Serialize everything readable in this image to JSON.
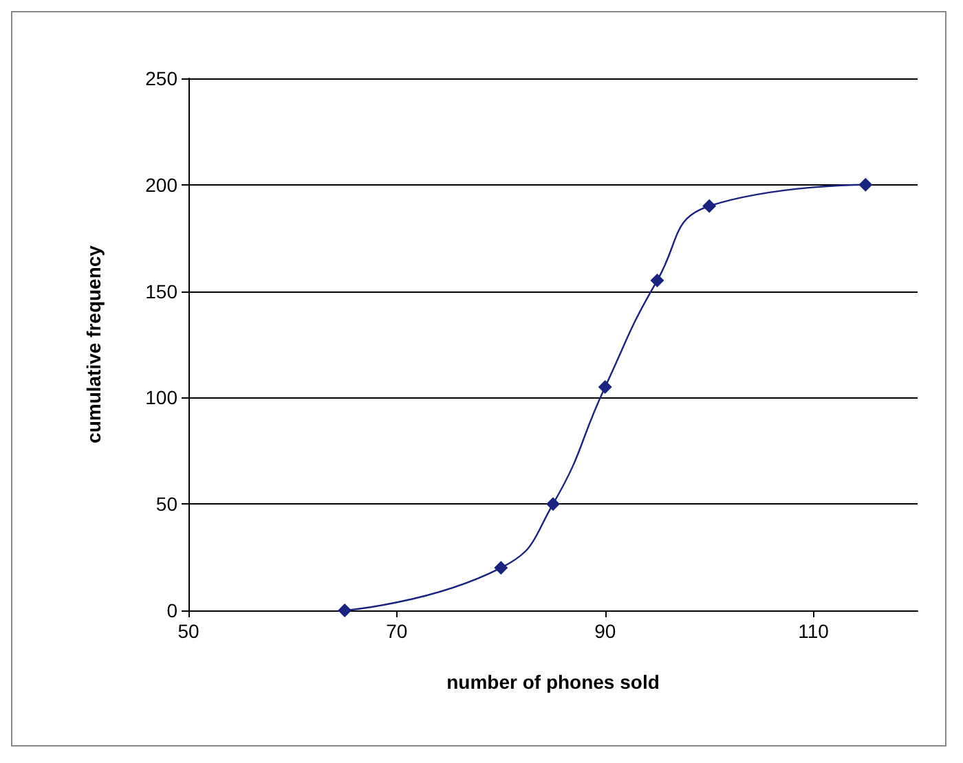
{
  "chart_data": {
    "type": "line",
    "xlabel": "number of phones sold",
    "ylabel": "cumulative frequency",
    "x": [
      65,
      80,
      85,
      90,
      95,
      100,
      115
    ],
    "series": [
      {
        "color": "#1a237e",
        "values": [
          0,
          20,
          50,
          105,
          155,
          190,
          200
        ]
      }
    ],
    "xlim": [
      50,
      120
    ],
    "xticks": [
      50,
      70,
      90,
      110
    ],
    "ylim": [
      0,
      250
    ],
    "yticks": [
      0,
      50,
      100,
      150,
      200,
      250
    ],
    "grid": "y",
    "marker": "diamond",
    "line_style": "solid"
  }
}
